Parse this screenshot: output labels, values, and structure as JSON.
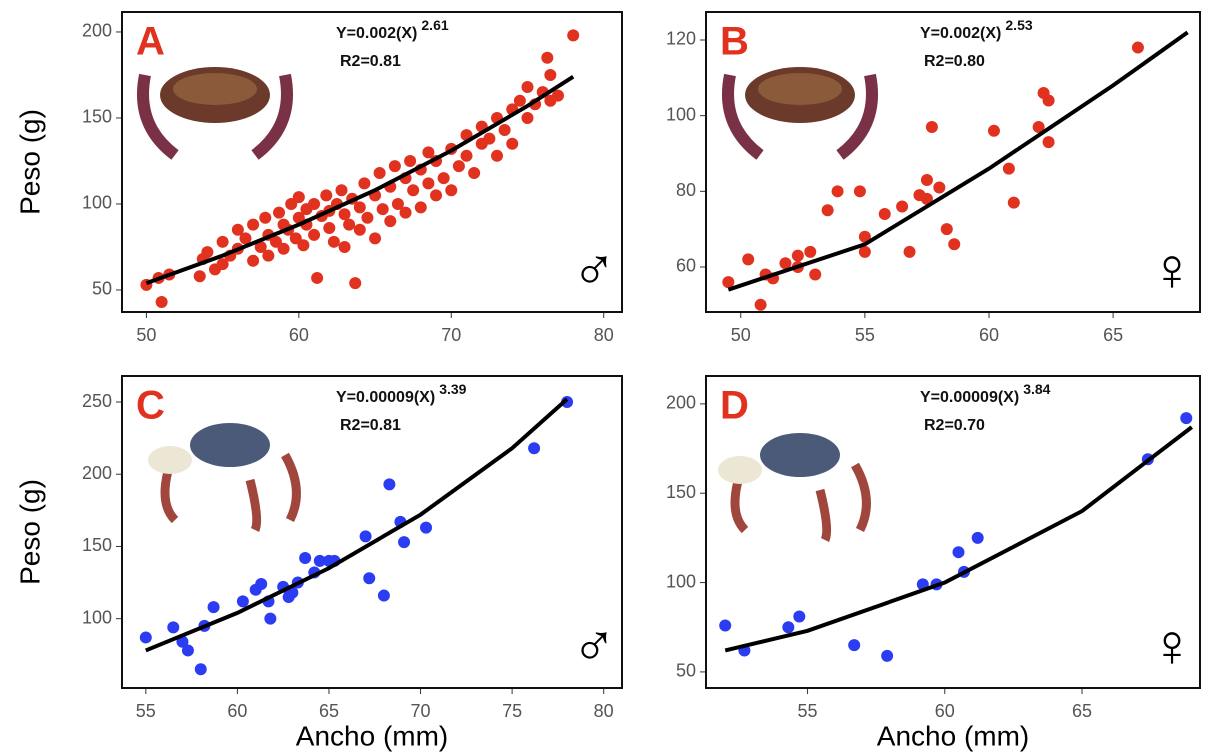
{
  "chart_data": [
    {
      "type": "scatter",
      "panel": "A",
      "equation": "Y=0.002(X)",
      "exponent": "2.61",
      "r2": "R2=0.81",
      "symbol": "♂",
      "ylabel": "Peso (g)",
      "color": "#e1311f",
      "fit_color": "#000000",
      "xlim": [
        48.4,
        81.2
      ],
      "ylim": [
        37.2,
        211.6
      ],
      "xticks": [
        50,
        60,
        70,
        80
      ],
      "yticks": [
        50,
        100,
        150,
        200
      ],
      "x": [
        50,
        51,
        50.8,
        51.5,
        53.5,
        53.7,
        54,
        54.5,
        55,
        55,
        55.5,
        56,
        56,
        56.5,
        57,
        57,
        57.5,
        57.8,
        58,
        58,
        58.5,
        58.7,
        59,
        59,
        59.3,
        59.5,
        59.8,
        60,
        60,
        60.3,
        60.5,
        60.5,
        61,
        61,
        61.2,
        61.5,
        61.8,
        62,
        62,
        62.3,
        62.5,
        62.8,
        63,
        63,
        63.3,
        63.5,
        63.7,
        64,
        64,
        64.3,
        64.5,
        65,
        65,
        65.3,
        65.5,
        66,
        66,
        66.3,
        66.5,
        67,
        67,
        67.3,
        67.5,
        68,
        68,
        68.5,
        68.5,
        69,
        69,
        69.5,
        70,
        70,
        70.5,
        71,
        71,
        71.5,
        72,
        72,
        72.5,
        73,
        73,
        73.5,
        74,
        74,
        74.5,
        75,
        75,
        75.5,
        76,
        76.5,
        76.5,
        77,
        76.3,
        78
      ],
      "y": [
        53,
        43,
        57,
        59,
        58,
        68,
        72,
        62,
        65,
        78,
        70,
        74,
        85,
        80,
        67,
        88,
        75,
        92,
        70,
        82,
        78,
        95,
        74,
        88,
        85,
        100,
        80,
        92,
        104,
        76,
        88,
        97,
        82,
        100,
        57,
        93,
        105,
        86,
        96,
        78,
        100,
        108,
        75,
        94,
        88,
        103,
        54,
        85,
        98,
        112,
        92,
        80,
        105,
        118,
        97,
        90,
        110,
        122,
        100,
        95,
        115,
        125,
        108,
        98,
        120,
        130,
        112,
        105,
        125,
        115,
        108,
        132,
        122,
        128,
        140,
        118,
        135,
        145,
        138,
        128,
        150,
        143,
        155,
        135,
        160,
        150,
        168,
        158,
        165,
        175,
        160,
        163,
        185,
        198
      ],
      "fit_x": [
        50,
        55,
        60,
        65,
        70,
        75,
        78
      ],
      "fit_y": [
        54,
        70,
        88,
        108,
        131,
        157,
        174
      ]
    },
    {
      "type": "scatter",
      "panel": "B",
      "equation": "Y=0.002(X)",
      "exponent": "2.53",
      "r2": "R2=0.80",
      "symbol": "♀",
      "color": "#e1311f",
      "fit_color": "#000000",
      "xlim": [
        48.6,
        68.5
      ],
      "ylim": [
        48.1,
        127.4
      ],
      "xticks": [
        50,
        55,
        60,
        65
      ],
      "yticks": [
        60,
        80,
        100,
        120
      ],
      "x": [
        49.5,
        50.3,
        50.8,
        51,
        51.3,
        51.8,
        52.3,
        52.3,
        52.8,
        53,
        53.5,
        53.9,
        54.8,
        55,
        55,
        55.8,
        56.5,
        56.8,
        57.2,
        57.5,
        57.5,
        57.7,
        58,
        58.3,
        58.6,
        60.2,
        60.8,
        61,
        62,
        62.2,
        62.4,
        62.4,
        66
      ],
      "y": [
        56,
        62,
        50,
        58,
        57,
        61,
        63,
        60,
        64,
        58,
        75,
        80,
        80,
        68,
        64,
        74,
        76,
        64,
        79,
        83,
        78,
        97,
        81,
        70,
        66,
        96,
        86,
        77,
        97,
        106,
        104,
        93,
        118
      ],
      "fit_x": [
        49.5,
        55,
        60,
        65,
        68
      ],
      "fit_y": [
        54,
        66,
        86,
        108,
        122
      ]
    },
    {
      "type": "scatter",
      "panel": "C",
      "equation": "Y=0.00009(X)",
      "exponent": "3.39",
      "r2": "R2=0.81",
      "symbol": "♂",
      "ylabel": "Peso (g)",
      "xlabel": "Ancho (mm)",
      "color": "#2b3cf2",
      "fit_color": "#000000",
      "xlim": [
        53.7,
        81
      ],
      "ylim": [
        52,
        268
      ],
      "xticks": [
        55,
        60,
        65,
        70,
        75,
        80
      ],
      "yticks": [
        100,
        150,
        200,
        250
      ],
      "x": [
        55,
        56.5,
        57,
        57.3,
        58,
        58.2,
        58.7,
        60.3,
        61,
        61.3,
        61.7,
        61.8,
        62.5,
        62.8,
        63,
        63.3,
        63.7,
        64.2,
        64.5,
        65,
        65.3,
        67,
        67.2,
        68,
        68.3,
        68.9,
        69.1,
        70.3,
        76.2,
        78
      ],
      "y": [
        87,
        94,
        84,
        78,
        65,
        95,
        108,
        112,
        120,
        124,
        112,
        100,
        122,
        115,
        118,
        125,
        142,
        132,
        140,
        140,
        140,
        157,
        128,
        116,
        193,
        167,
        153,
        163,
        218,
        250
      ],
      "fit_x": [
        55,
        60,
        65,
        70,
        75,
        78
      ],
      "fit_y": [
        78,
        104,
        135,
        172,
        218,
        252
      ]
    },
    {
      "type": "scatter",
      "panel": "D",
      "equation": "Y=0.00009(X)",
      "exponent": "3.84",
      "r2": "R2=0.70",
      "symbol": "♀",
      "xlabel": "Ancho (mm)",
      "color": "#2b3cf2",
      "fit_color": "#000000",
      "xlim": [
        51.3,
        69.3
      ],
      "ylim": [
        41,
        215.6
      ],
      "xticks": [
        55,
        60,
        65
      ],
      "yticks": [
        50,
        100,
        150,
        200
      ],
      "x": [
        52,
        52.7,
        54.3,
        54.7,
        56.7,
        57.9,
        59.2,
        59.7,
        60.5,
        60.7,
        61.2,
        67.4,
        68.8
      ],
      "y": [
        76,
        62,
        75,
        81,
        65,
        59,
        99,
        99,
        117,
        106,
        125,
        169,
        192
      ],
      "fit_x": [
        52,
        55,
        60,
        65,
        69
      ],
      "fit_y": [
        62,
        73,
        100,
        140,
        187
      ]
    }
  ]
}
